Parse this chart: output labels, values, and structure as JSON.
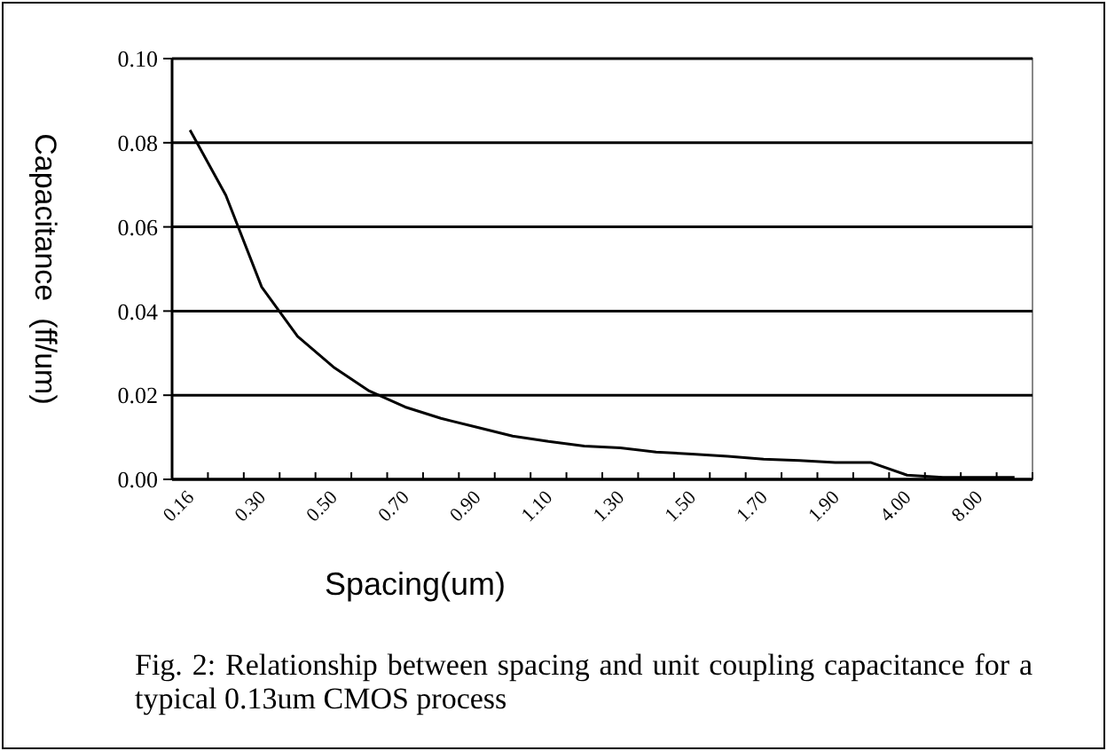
{
  "chart_data": {
    "type": "line",
    "xlabel": "Spacing(um)",
    "ylabel": "Capacitance  (ff/um)",
    "categories": [
      "0.16",
      null,
      "0.30",
      null,
      "0.50",
      null,
      "0.70",
      null,
      "0.90",
      null,
      "1.10",
      null,
      "1.30",
      null,
      "1.50",
      null,
      "1.70",
      null,
      "1.90",
      null,
      "4.00",
      null,
      "8.00",
      null
    ],
    "series": [
      {
        "color": "#000000",
        "values": [
          0.083,
          0.0675,
          0.0457,
          0.034,
          0.0267,
          0.021,
          0.0172,
          0.0145,
          0.0124,
          0.0103,
          0.009,
          0.0079,
          0.0075,
          0.0065,
          0.006,
          0.0055,
          0.0048,
          0.0045,
          0.004,
          0.004,
          0.001,
          0.0005,
          0.0005,
          0.0005
        ]
      }
    ],
    "ylim": [
      0,
      0.1
    ],
    "yticks": [
      {
        "value": 0,
        "label": "0.00"
      },
      {
        "value": 0.02,
        "label": "0.02"
      },
      {
        "value": 0.04,
        "label": "0.04"
      },
      {
        "value": 0.06,
        "label": "0.06"
      },
      {
        "value": 0.08,
        "label": "0.08"
      },
      {
        "value": 0.1,
        "label": "0.10"
      }
    ],
    "grid": "y",
    "marker": "none",
    "line_style": "solid",
    "annotations": [
      "Fig. 2: Relationship between spacing and unit coupling capacitance for a typical 0.13um CMOS process"
    ]
  }
}
